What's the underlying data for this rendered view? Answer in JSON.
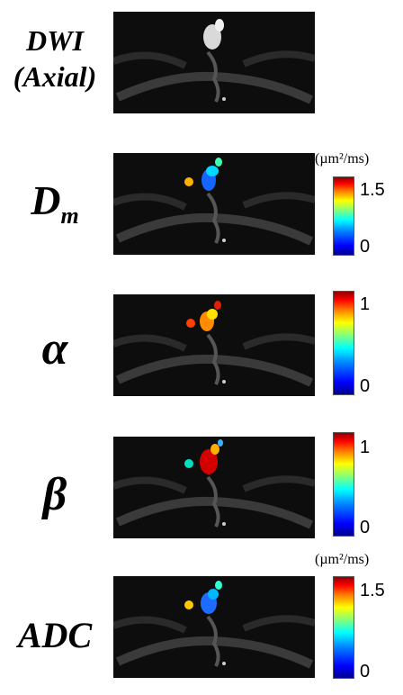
{
  "rows": [
    {
      "label_line1": "DWI",
      "label_line2": "(Axial)",
      "overlay": "none"
    },
    {
      "label_main": "D",
      "label_sub": "m",
      "overlay": "dm",
      "unit": "(µm²/ms)",
      "cbar_max": "1.5",
      "cbar_min": "0"
    },
    {
      "label_main": "α",
      "overlay": "alpha",
      "cbar_max": "1",
      "cbar_min": "0"
    },
    {
      "label_main": "β",
      "overlay": "beta",
      "cbar_max": "1",
      "cbar_min": "0"
    },
    {
      "label_main": "ADC",
      "overlay": "adc",
      "unit": "(µm²/ms)",
      "cbar_max": "1.5",
      "cbar_min": "0"
    }
  ],
  "colors": {
    "background": "#ffffff",
    "panel": "#0c0c0c",
    "text": "#000000"
  }
}
